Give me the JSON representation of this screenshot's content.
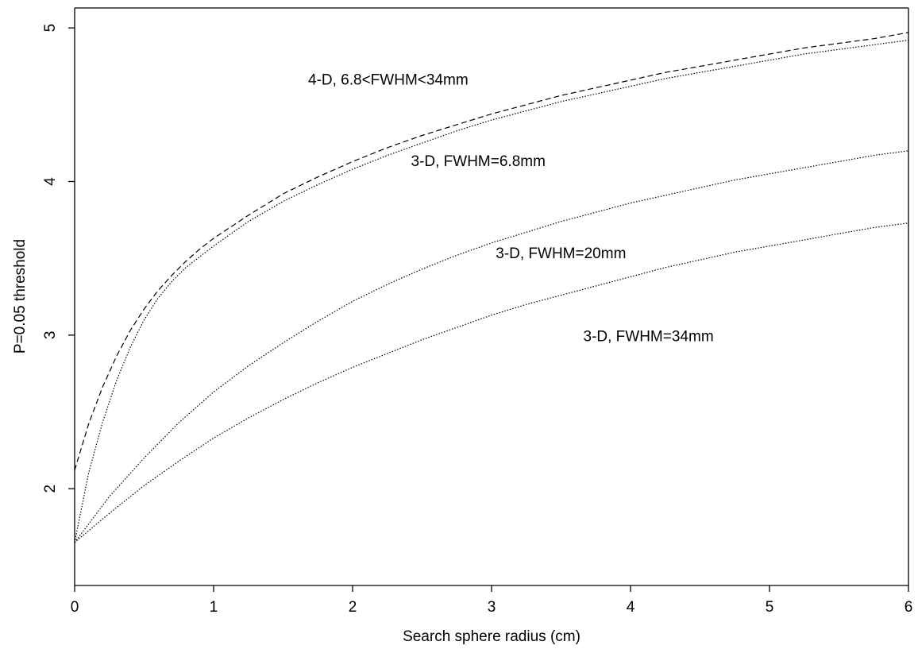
{
  "chart_data": {
    "type": "line",
    "title": "",
    "xlabel": "Search sphere radius (cm)",
    "ylabel": "P=0.05 threshold",
    "xlim": [
      0,
      6
    ],
    "ylim": [
      1.37,
      5.13
    ],
    "xticks": [
      0,
      1,
      2,
      3,
      4,
      5,
      6
    ],
    "yticks": [
      2,
      3,
      4,
      5
    ],
    "grid": false,
    "legend": "none",
    "series": [
      {
        "style": "dashed",
        "points": [
          [
            0,
            2.12
          ],
          [
            0.1,
            2.42
          ],
          [
            0.2,
            2.66
          ],
          [
            0.3,
            2.86
          ],
          [
            0.4,
            3.03
          ],
          [
            0.5,
            3.17
          ],
          [
            0.6,
            3.29
          ],
          [
            0.7,
            3.39
          ],
          [
            0.8,
            3.48
          ],
          [
            0.9,
            3.56
          ],
          [
            1.0,
            3.63
          ],
          [
            1.25,
            3.78
          ],
          [
            1.5,
            3.92
          ],
          [
            1.75,
            4.03
          ],
          [
            2.0,
            4.13
          ],
          [
            2.25,
            4.22
          ],
          [
            2.5,
            4.3
          ],
          [
            2.75,
            4.37
          ],
          [
            3.0,
            4.44
          ],
          [
            3.25,
            4.5
          ],
          [
            3.5,
            4.56
          ],
          [
            3.75,
            4.61
          ],
          [
            4.0,
            4.66
          ],
          [
            4.25,
            4.71
          ],
          [
            4.5,
            4.75
          ],
          [
            4.75,
            4.79
          ],
          [
            5.0,
            4.83
          ],
          [
            5.25,
            4.87
          ],
          [
            5.5,
            4.9
          ],
          [
            5.75,
            4.93
          ],
          [
            6.0,
            4.97
          ]
        ]
      },
      {
        "style": "dotted",
        "points": [
          [
            0,
            1.65
          ],
          [
            0.1,
            2.1
          ],
          [
            0.2,
            2.43
          ],
          [
            0.3,
            2.7
          ],
          [
            0.4,
            2.92
          ],
          [
            0.5,
            3.1
          ],
          [
            0.6,
            3.24
          ],
          [
            0.7,
            3.35
          ],
          [
            0.8,
            3.44
          ],
          [
            0.9,
            3.51
          ],
          [
            1.0,
            3.58
          ],
          [
            1.25,
            3.74
          ],
          [
            1.5,
            3.87
          ],
          [
            1.75,
            3.98
          ],
          [
            2.0,
            4.08
          ],
          [
            2.25,
            4.17
          ],
          [
            2.5,
            4.25
          ],
          [
            2.75,
            4.33
          ],
          [
            3.0,
            4.4
          ],
          [
            3.25,
            4.46
          ],
          [
            3.5,
            4.52
          ],
          [
            3.75,
            4.57
          ],
          [
            4.0,
            4.62
          ],
          [
            4.25,
            4.67
          ],
          [
            4.5,
            4.71
          ],
          [
            4.75,
            4.75
          ],
          [
            5.0,
            4.79
          ],
          [
            5.25,
            4.83
          ],
          [
            5.5,
            4.86
          ],
          [
            5.75,
            4.89
          ],
          [
            6.0,
            4.92
          ]
        ]
      },
      {
        "style": "dotted",
        "points": [
          [
            0,
            1.65
          ],
          [
            0.25,
            1.95
          ],
          [
            0.5,
            2.2
          ],
          [
            0.75,
            2.43
          ],
          [
            1.0,
            2.63
          ],
          [
            1.25,
            2.8
          ],
          [
            1.5,
            2.95
          ],
          [
            1.75,
            3.09
          ],
          [
            2.0,
            3.22
          ],
          [
            2.25,
            3.33
          ],
          [
            2.5,
            3.43
          ],
          [
            2.75,
            3.52
          ],
          [
            3.0,
            3.6
          ],
          [
            3.25,
            3.67
          ],
          [
            3.5,
            3.74
          ],
          [
            3.75,
            3.8
          ],
          [
            4.0,
            3.86
          ],
          [
            4.25,
            3.91
          ],
          [
            4.5,
            3.96
          ],
          [
            4.75,
            4.01
          ],
          [
            5.0,
            4.05
          ],
          [
            5.25,
            4.09
          ],
          [
            5.5,
            4.13
          ],
          [
            5.75,
            4.17
          ],
          [
            6.0,
            4.2
          ]
        ]
      },
      {
        "style": "dotted",
        "points": [
          [
            0,
            1.65
          ],
          [
            0.25,
            1.84
          ],
          [
            0.5,
            2.02
          ],
          [
            0.75,
            2.18
          ],
          [
            1.0,
            2.33
          ],
          [
            1.25,
            2.46
          ],
          [
            1.5,
            2.58
          ],
          [
            1.75,
            2.69
          ],
          [
            2.0,
            2.79
          ],
          [
            2.25,
            2.88
          ],
          [
            2.5,
            2.97
          ],
          [
            2.75,
            3.05
          ],
          [
            3.0,
            3.13
          ],
          [
            3.25,
            3.2
          ],
          [
            3.5,
            3.26
          ],
          [
            3.75,
            3.32
          ],
          [
            4.0,
            3.38
          ],
          [
            4.25,
            3.44
          ],
          [
            4.5,
            3.49
          ],
          [
            4.75,
            3.54
          ],
          [
            5.0,
            3.58
          ],
          [
            5.25,
            3.62
          ],
          [
            5.5,
            3.66
          ],
          [
            5.75,
            3.7
          ],
          [
            6.0,
            3.73
          ]
        ]
      }
    ],
    "annotations": [
      {
        "text": "4-D, 6.8<FWHM<34mm",
        "x": 1.68,
        "y": 4.63
      },
      {
        "text": "3-D, FWHM=6.8mm",
        "x": 2.42,
        "y": 4.1
      },
      {
        "text": "3-D, FWHM=20mm",
        "x": 3.03,
        "y": 3.5
      },
      {
        "text": "3-D, FWHM=34mm",
        "x": 3.66,
        "y": 2.96
      }
    ]
  }
}
